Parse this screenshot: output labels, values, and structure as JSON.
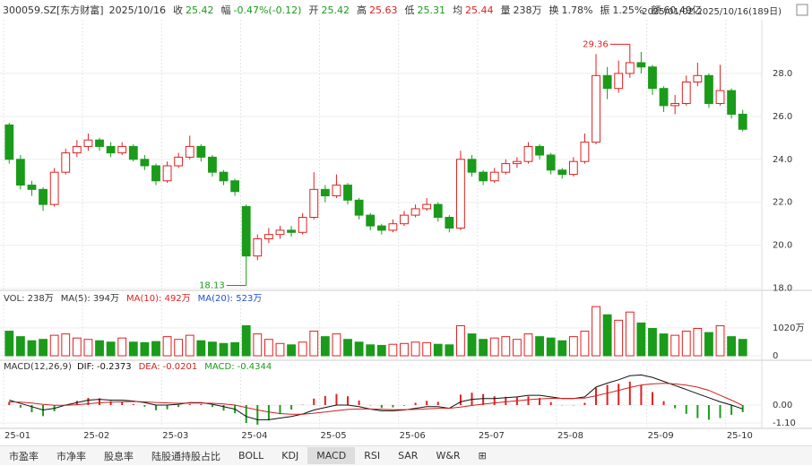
{
  "header": {
    "symbol": "300059.SZ[东方财富]",
    "date": "2025/10/16",
    "fields": [
      {
        "label": "收",
        "value": 25.42,
        "color": "#1a9b1a"
      },
      {
        "label": "幅",
        "value": "-0.47%(-0.12)",
        "color": "#1a9b1a"
      },
      {
        "label": "开",
        "value": 25.42,
        "color": "#1a9b1a"
      },
      {
        "label": "高",
        "value": 25.63,
        "color": "#e02020"
      },
      {
        "label": "低",
        "value": 25.31,
        "color": "#1a9b1a"
      },
      {
        "label": "均",
        "value": 25.44,
        "color": "#e02020"
      },
      {
        "label": "量",
        "value": "238万",
        "color": "#333333"
      },
      {
        "label": "换",
        "value": "1.78%",
        "color": "#333333"
      },
      {
        "label": "振",
        "value": "1.25%",
        "color": "#333333"
      },
      {
        "label": "额",
        "value": "60.49亿",
        "color": "#333333"
      }
    ],
    "range": "2025/01/02-2025/10/16(189日)"
  },
  "chart_data": [
    {
      "type": "candlestick",
      "up_color": "#e02020",
      "down_color": "#1a9b1a",
      "ohlc": [
        [
          25.6,
          25.7,
          23.8,
          24.0
        ],
        [
          24.0,
          24.2,
          22.6,
          22.8
        ],
        [
          22.8,
          23.0,
          22.3,
          22.6
        ],
        [
          22.6,
          22.7,
          21.6,
          21.9
        ],
        [
          21.9,
          23.6,
          21.8,
          23.4
        ],
        [
          23.4,
          24.5,
          23.3,
          24.3
        ],
        [
          24.3,
          24.9,
          24.1,
          24.6
        ],
        [
          24.6,
          25.2,
          24.4,
          24.9
        ],
        [
          24.9,
          25.0,
          24.4,
          24.6
        ],
        [
          24.6,
          24.8,
          24.1,
          24.3
        ],
        [
          24.3,
          24.8,
          24.2,
          24.6
        ],
        [
          24.6,
          24.7,
          23.9,
          24.0
        ],
        [
          24.0,
          24.2,
          23.5,
          23.7
        ],
        [
          23.7,
          23.8,
          22.8,
          23.0
        ],
        [
          23.0,
          23.9,
          22.9,
          23.7
        ],
        [
          23.7,
          24.3,
          23.6,
          24.1
        ],
        [
          24.1,
          25.1,
          24.0,
          24.6
        ],
        [
          24.6,
          24.7,
          23.9,
          24.1
        ],
        [
          24.1,
          24.2,
          23.2,
          23.4
        ],
        [
          23.4,
          23.5,
          22.8,
          23.0
        ],
        [
          23.0,
          23.1,
          22.3,
          22.5
        ],
        [
          21.8,
          21.9,
          18.13,
          19.5
        ],
        [
          19.5,
          20.5,
          19.3,
          20.3
        ],
        [
          20.3,
          20.8,
          20.1,
          20.5
        ],
        [
          20.5,
          20.9,
          20.3,
          20.7
        ],
        [
          20.7,
          20.9,
          20.4,
          20.6
        ],
        [
          20.6,
          21.5,
          20.5,
          21.3
        ],
        [
          21.3,
          23.4,
          21.2,
          22.6
        ],
        [
          22.6,
          22.8,
          22.0,
          22.3
        ],
        [
          22.3,
          23.3,
          22.2,
          22.8
        ],
        [
          22.8,
          22.9,
          21.9,
          22.1
        ],
        [
          22.1,
          22.2,
          21.2,
          21.4
        ],
        [
          21.4,
          21.5,
          20.7,
          20.9
        ],
        [
          20.9,
          21.0,
          20.5,
          20.7
        ],
        [
          20.7,
          21.2,
          20.6,
          21.0
        ],
        [
          21.0,
          21.6,
          20.9,
          21.4
        ],
        [
          21.4,
          21.9,
          21.3,
          21.7
        ],
        [
          21.7,
          22.2,
          21.6,
          21.9
        ],
        [
          21.9,
          22.0,
          21.1,
          21.3
        ],
        [
          21.3,
          21.4,
          20.6,
          20.8
        ],
        [
          20.8,
          24.4,
          20.7,
          24.0
        ],
        [
          24.0,
          24.2,
          23.2,
          23.4
        ],
        [
          23.4,
          23.5,
          22.8,
          23.0
        ],
        [
          23.0,
          23.6,
          22.9,
          23.4
        ],
        [
          23.4,
          24.0,
          23.3,
          23.8
        ],
        [
          23.8,
          24.1,
          23.6,
          23.9
        ],
        [
          23.9,
          24.8,
          23.8,
          24.6
        ],
        [
          24.6,
          24.7,
          24.0,
          24.2
        ],
        [
          24.2,
          24.3,
          23.3,
          23.5
        ],
        [
          23.5,
          23.6,
          23.1,
          23.3
        ],
        [
          23.3,
          24.1,
          23.2,
          23.9
        ],
        [
          23.9,
          25.2,
          23.8,
          24.8
        ],
        [
          24.8,
          28.9,
          24.7,
          27.9
        ],
        [
          27.9,
          28.3,
          26.8,
          27.3
        ],
        [
          27.3,
          28.6,
          27.1,
          28.0
        ],
        [
          28.0,
          29.36,
          27.8,
          28.5
        ],
        [
          28.5,
          29.0,
          28.0,
          28.3
        ],
        [
          28.3,
          28.4,
          27.0,
          27.3
        ],
        [
          27.3,
          27.4,
          26.2,
          26.5
        ],
        [
          26.5,
          27.0,
          26.1,
          26.6
        ],
        [
          26.6,
          27.9,
          26.5,
          27.6
        ],
        [
          27.6,
          28.5,
          27.4,
          27.9
        ],
        [
          27.9,
          28.0,
          26.4,
          26.6
        ],
        [
          26.6,
          28.4,
          26.5,
          27.2
        ],
        [
          27.2,
          27.3,
          25.9,
          26.1
        ],
        [
          26.1,
          26.3,
          25.3,
          25.4
        ]
      ],
      "ylim": [
        17.9,
        30.5
      ],
      "yticks": [
        {
          "value": 18,
          "label": "18.0"
        },
        {
          "value": 20,
          "label": "20.0"
        },
        {
          "value": 22,
          "label": "22.0"
        },
        {
          "value": 24,
          "label": "24.0"
        },
        {
          "value": 26,
          "label": "26.0"
        },
        {
          "value": 28,
          "label": "28.0"
        }
      ],
      "xticks": [
        {
          "value": 0,
          "label": "25-01"
        },
        {
          "value": 7,
          "label": "25-02"
        },
        {
          "value": 14,
          "label": "25-03"
        },
        {
          "value": 21,
          "label": "25-04"
        },
        {
          "value": 28,
          "label": "25-05"
        },
        {
          "value": 35,
          "label": "25-06"
        },
        {
          "value": 42,
          "label": "25-07"
        },
        {
          "value": 49,
          "label": "25-08"
        },
        {
          "value": 57,
          "label": "25-09"
        },
        {
          "value": 64,
          "label": "25-10"
        }
      ],
      "grid": true
    },
    {
      "type": "bar",
      "legend": [
        {
          "text": "VOL: 238万",
          "color": "#333333"
        },
        {
          "text": "MA(5): 394万",
          "color": "#333333"
        },
        {
          "text": "MA(10): 492万",
          "color": "#e02020"
        },
        {
          "text": "MA(20): 523万",
          "color": "#2050d0"
        }
      ],
      "values": [
        900,
        700,
        550,
        600,
        750,
        800,
        650,
        600,
        550,
        500,
        650,
        500,
        480,
        520,
        700,
        600,
        750,
        550,
        500,
        450,
        480,
        1100,
        800,
        600,
        450,
        400,
        500,
        900,
        700,
        800,
        600,
        500,
        400,
        380,
        420,
        450,
        500,
        480,
        420,
        400,
        1100,
        800,
        600,
        650,
        700,
        600,
        800,
        700,
        650,
        550,
        700,
        900,
        1800,
        1500,
        1300,
        1600,
        1200,
        1000,
        800,
        750,
        900,
        1000,
        850,
        1100,
        700,
        600
      ],
      "ylim": [
        0,
        2000
      ],
      "yticks": [
        0,
        {
          "value": 1020,
          "label": "1020万"
        }
      ]
    },
    {
      "type": "macd",
      "title": "MACD(12,26,9)",
      "ylim": [
        -1.43,
        2.2
      ],
      "yticks": [
        {
          "value": 0,
          "label": "0.00"
        },
        {
          "value": -1.1,
          "label": "-1.10"
        }
      ],
      "series": [
        {
          "name": "DIF:",
          "color": "#111111",
          "values": [
            0.3,
            0.1,
            -0.1,
            -0.3,
            -0.2,
            0.0,
            0.15,
            0.3,
            0.35,
            0.3,
            0.3,
            0.25,
            0.15,
            0.0,
            0.0,
            0.05,
            0.15,
            0.15,
            0.05,
            -0.1,
            -0.25,
            -0.7,
            -0.9,
            -0.9,
            -0.8,
            -0.7,
            -0.55,
            -0.3,
            -0.15,
            0.0,
            0.0,
            -0.1,
            -0.25,
            -0.35,
            -0.35,
            -0.3,
            -0.2,
            -0.1,
            -0.1,
            -0.2,
            0.2,
            0.35,
            0.4,
            0.4,
            0.45,
            0.5,
            0.6,
            0.6,
            0.5,
            0.4,
            0.4,
            0.5,
            1.1,
            1.35,
            1.55,
            1.8,
            1.85,
            1.7,
            1.45,
            1.2,
            0.95,
            0.7,
            0.45,
            0.2,
            0.0,
            -0.2373
          ]
        },
        {
          "name": "DEA:",
          "color": "#d02020",
          "values": [
            0.2,
            0.18,
            0.12,
            0.04,
            -0.01,
            -0.01,
            0.02,
            0.08,
            0.14,
            0.18,
            0.2,
            0.22,
            0.2,
            0.16,
            0.13,
            0.11,
            0.12,
            0.12,
            0.11,
            0.07,
            0.0,
            -0.15,
            -0.3,
            -0.43,
            -0.52,
            -0.56,
            -0.56,
            -0.5,
            -0.43,
            -0.34,
            -0.27,
            -0.24,
            -0.24,
            -0.26,
            -0.28,
            -0.28,
            -0.27,
            -0.23,
            -0.2,
            -0.2,
            -0.12,
            -0.03,
            0.06,
            0.13,
            0.2,
            0.26,
            0.33,
            0.38,
            0.41,
            0.41,
            0.41,
            0.43,
            0.57,
            0.73,
            0.9,
            1.08,
            1.23,
            1.3,
            1.33,
            1.3,
            1.22,
            1.1,
            0.9,
            0.6,
            0.3,
            -0.0201
          ]
        },
        {
          "name": "MACD:",
          "color": "#1a9b1a",
          "up_color": "#e02020",
          "values": [
            0.2,
            -0.16,
            -0.44,
            -0.68,
            -0.38,
            0.02,
            0.26,
            0.44,
            0.42,
            0.24,
            0.2,
            0.06,
            -0.1,
            -0.32,
            -0.26,
            -0.12,
            0.06,
            0.06,
            -0.12,
            -0.34,
            -0.5,
            -1.1,
            -1.2,
            -0.94,
            -0.56,
            -0.28,
            0.02,
            0.4,
            0.56,
            0.68,
            0.54,
            0.28,
            -0.02,
            -0.18,
            -0.14,
            -0.04,
            0.14,
            0.26,
            0.2,
            0.0,
            0.64,
            0.76,
            0.68,
            0.54,
            0.5,
            0.48,
            0.54,
            0.44,
            0.18,
            -0.02,
            -0.02,
            0.14,
            1.06,
            1.24,
            1.3,
            1.44,
            1.24,
            0.8,
            0.24,
            -0.2,
            -0.54,
            -0.8,
            -0.9,
            -0.8,
            -0.6,
            -0.4344
          ]
        }
      ]
    }
  ],
  "toolbar": {
    "tabs": [
      "市盈率",
      "市净率",
      "股息率",
      "陆股通持股占比",
      "BOLL",
      "KDJ",
      "MACD",
      "RSI",
      "SAR",
      "W&R",
      "⊞"
    ],
    "selected": 6
  }
}
